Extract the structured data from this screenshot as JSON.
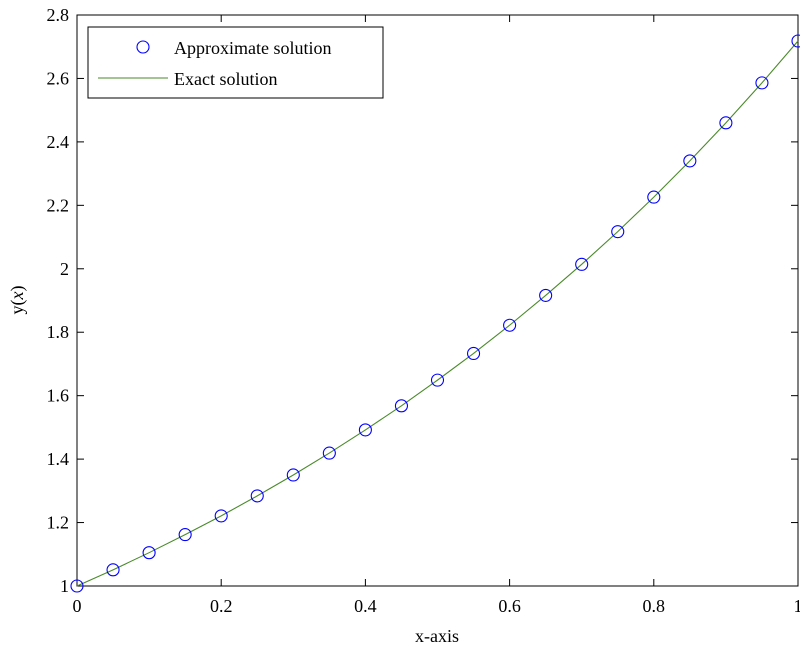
{
  "chart_data": {
    "type": "line",
    "title": "",
    "xlabel": "x-axis",
    "ylabel": {
      "prefix": "y(",
      "var": "x",
      "suffix": ")"
    },
    "xlim": [
      0,
      1
    ],
    "ylim": [
      1,
      2.8
    ],
    "xticks": [
      0,
      0.2,
      0.4,
      0.6,
      0.8,
      1
    ],
    "xtick_labels": [
      "0",
      "0.2",
      "0.4",
      "0.6",
      "0.8",
      "1"
    ],
    "yticks": [
      1,
      1.2,
      1.4,
      1.6,
      1.8,
      2,
      2.2,
      2.4,
      2.6,
      2.8
    ],
    "ytick_labels": [
      "1",
      "1.2",
      "1.4",
      "1.6",
      "1.8",
      "2",
      "2.2",
      "2.4",
      "2.6",
      "2.8"
    ],
    "grid": false,
    "legend_position": "top-left",
    "series": [
      {
        "name": "Approximate solution",
        "style": "markers",
        "marker": "circle",
        "color": "#0000ff",
        "x": [
          0,
          0.05,
          0.1,
          0.15,
          0.2,
          0.25,
          0.3,
          0.35,
          0.4,
          0.45,
          0.5,
          0.55,
          0.6,
          0.65,
          0.7,
          0.75,
          0.8,
          0.85,
          0.9,
          0.95,
          1
        ],
        "y": [
          1.0,
          1.051,
          1.105,
          1.162,
          1.221,
          1.284,
          1.35,
          1.419,
          1.492,
          1.568,
          1.649,
          1.733,
          1.822,
          1.916,
          2.014,
          2.117,
          2.226,
          2.34,
          2.46,
          2.586,
          2.718
        ]
      },
      {
        "name": "Exact solution",
        "style": "line",
        "color": "#4a8a2a",
        "x": [
          0,
          0.05,
          0.1,
          0.15,
          0.2,
          0.25,
          0.3,
          0.35,
          0.4,
          0.45,
          0.5,
          0.55,
          0.6,
          0.65,
          0.7,
          0.75,
          0.8,
          0.85,
          0.9,
          0.95,
          1
        ],
        "y": [
          1.0,
          1.051,
          1.105,
          1.162,
          1.221,
          1.284,
          1.35,
          1.419,
          1.492,
          1.568,
          1.649,
          1.733,
          1.822,
          1.916,
          2.014,
          2.117,
          2.226,
          2.34,
          2.46,
          2.586,
          2.718
        ]
      }
    ]
  }
}
